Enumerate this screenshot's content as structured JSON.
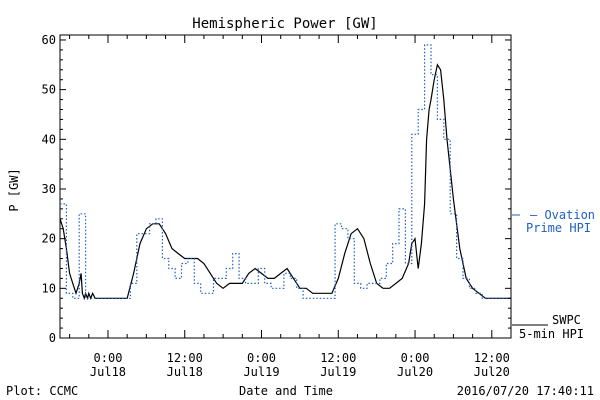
{
  "chart_data": {
    "type": "line",
    "title": "Hemispheric Power [GW]",
    "ylabel": "P [GW]",
    "xlabel": "Date and Time",
    "ylim": [
      0,
      61
    ],
    "xlim": [
      -7.5,
      63
    ],
    "yticks": [
      0,
      10,
      20,
      30,
      40,
      50,
      60
    ],
    "xticks": [
      {
        "hour": 0,
        "time": "0:00",
        "date": "Jul18"
      },
      {
        "hour": 12,
        "time": "12:00",
        "date": "Jul18"
      },
      {
        "hour": 24,
        "time": "0:00",
        "date": "Jul19"
      },
      {
        "hour": 36,
        "time": "12:00",
        "date": "Jul19"
      },
      {
        "hour": 48,
        "time": "0:00",
        "date": "Jul20"
      },
      {
        "hour": 60,
        "time": "12:00",
        "date": "Jul20"
      }
    ],
    "grid": false,
    "legend": [
      {
        "name": "— Ovation",
        "name2": "Prime HPI",
        "color": "#2060c0",
        "style": "dotted"
      },
      {
        "name": "SWPC",
        "name2": "5-min HPI",
        "color": "#000000",
        "style": "solid"
      }
    ],
    "series": [
      {
        "name": "SWPC 5-min HPI",
        "color": "#000000",
        "x": [
          -7.5,
          -7.0,
          -6.5,
          -6.0,
          -5.5,
          -5.0,
          -4.5,
          -4.2,
          -4.0,
          -3.7,
          -3.5,
          -3.2,
          -3.0,
          -2.7,
          -2.4,
          -2.0,
          -1.5,
          -1.0,
          -0.5,
          0.0,
          1.0,
          2.0,
          3.0,
          4.0,
          5.0,
          6.0,
          7.0,
          8.0,
          9.0,
          10.0,
          11.0,
          12.0,
          13.0,
          14.0,
          15.0,
          16.0,
          17.0,
          18.0,
          19.0,
          20.0,
          21.0,
          22.0,
          23.0,
          24.0,
          25.0,
          26.0,
          27.0,
          28.0,
          29.0,
          30.0,
          31.0,
          32.0,
          33.0,
          34.0,
          35.0,
          36.0,
          37.0,
          38.0,
          39.0,
          40.0,
          41.0,
          42.0,
          43.0,
          44.0,
          45.0,
          46.0,
          47.0,
          47.5,
          48.0,
          48.5,
          49.0,
          49.5,
          49.8,
          50.2,
          50.5,
          51.0,
          51.5,
          52.0,
          52.5,
          53.0,
          53.5,
          54.0,
          54.5,
          55.0,
          55.5,
          56.0,
          57.0,
          58.0,
          59.0,
          60.0,
          61.0,
          62.0,
          63.0
        ],
        "y": [
          24,
          22,
          18,
          13,
          11,
          9,
          11,
          13,
          9,
          8,
          9,
          8,
          9,
          8,
          9,
          8,
          8,
          8,
          8,
          8,
          8,
          8,
          8,
          13,
          19,
          22,
          23,
          23,
          21,
          18,
          17,
          16,
          16,
          16,
          15,
          13,
          11,
          10,
          11,
          11,
          11,
          13,
          14,
          13,
          12,
          12,
          13,
          14,
          12,
          10,
          10,
          9,
          9,
          9,
          9,
          12,
          17,
          21,
          22,
          20,
          15,
          11,
          10,
          10,
          11,
          12,
          15,
          19,
          20,
          14,
          19,
          27,
          40,
          46,
          48,
          52,
          55,
          54,
          48,
          40,
          34,
          28,
          23,
          18,
          15,
          12,
          10,
          9,
          8,
          8,
          8,
          8,
          8
        ]
      },
      {
        "name": "Ovation Prime HPI",
        "color": "#2060c0",
        "x": [
          -7.5,
          -6.5,
          -5.5,
          -4.5,
          -3.5,
          -2.5,
          -1.5,
          -0.5,
          0.5,
          1.5,
          2.5,
          3.5,
          4.5,
          5.5,
          6.5,
          7.5,
          8.5,
          9.5,
          10.5,
          11.5,
          12.5,
          13.5,
          14.5,
          15.5,
          16.5,
          17.5,
          18.5,
          19.5,
          20.5,
          21.5,
          22.5,
          23.5,
          24.5,
          25.5,
          26.5,
          27.5,
          28.5,
          29.5,
          30.5,
          31.5,
          32.5,
          33.5,
          34.5,
          35.5,
          36.5,
          37.5,
          38.5,
          39.5,
          40.5,
          41.5,
          42.5,
          43.5,
          44.5,
          45.5,
          46.5,
          47.5,
          48.5,
          49.5,
          50.5,
          51.5,
          52.5,
          53.5,
          54.5,
          55.5,
          56.5,
          57.5,
          58.5,
          59.5,
          60.5,
          61.5,
          62.5
        ],
        "y": [
          27,
          9,
          8,
          25,
          8,
          8,
          8,
          8,
          8,
          8,
          8,
          11,
          21,
          21,
          23,
          24,
          16,
          14,
          12,
          15,
          16,
          11,
          9,
          9,
          12,
          12,
          14,
          17,
          12,
          11,
          11,
          14,
          11,
          10,
          10,
          13,
          12,
          10,
          8,
          8,
          8,
          8,
          8,
          23,
          22,
          20,
          11,
          10,
          11,
          11,
          12,
          15,
          19,
          26,
          15,
          41,
          46,
          59,
          53,
          44,
          40,
          25,
          16,
          12,
          10,
          9,
          8,
          8,
          8,
          8,
          8
        ]
      }
    ]
  },
  "footer": {
    "left": "Plot: CCMC",
    "center": "Date and Time",
    "right": "2016/07/20 17:40:11"
  }
}
